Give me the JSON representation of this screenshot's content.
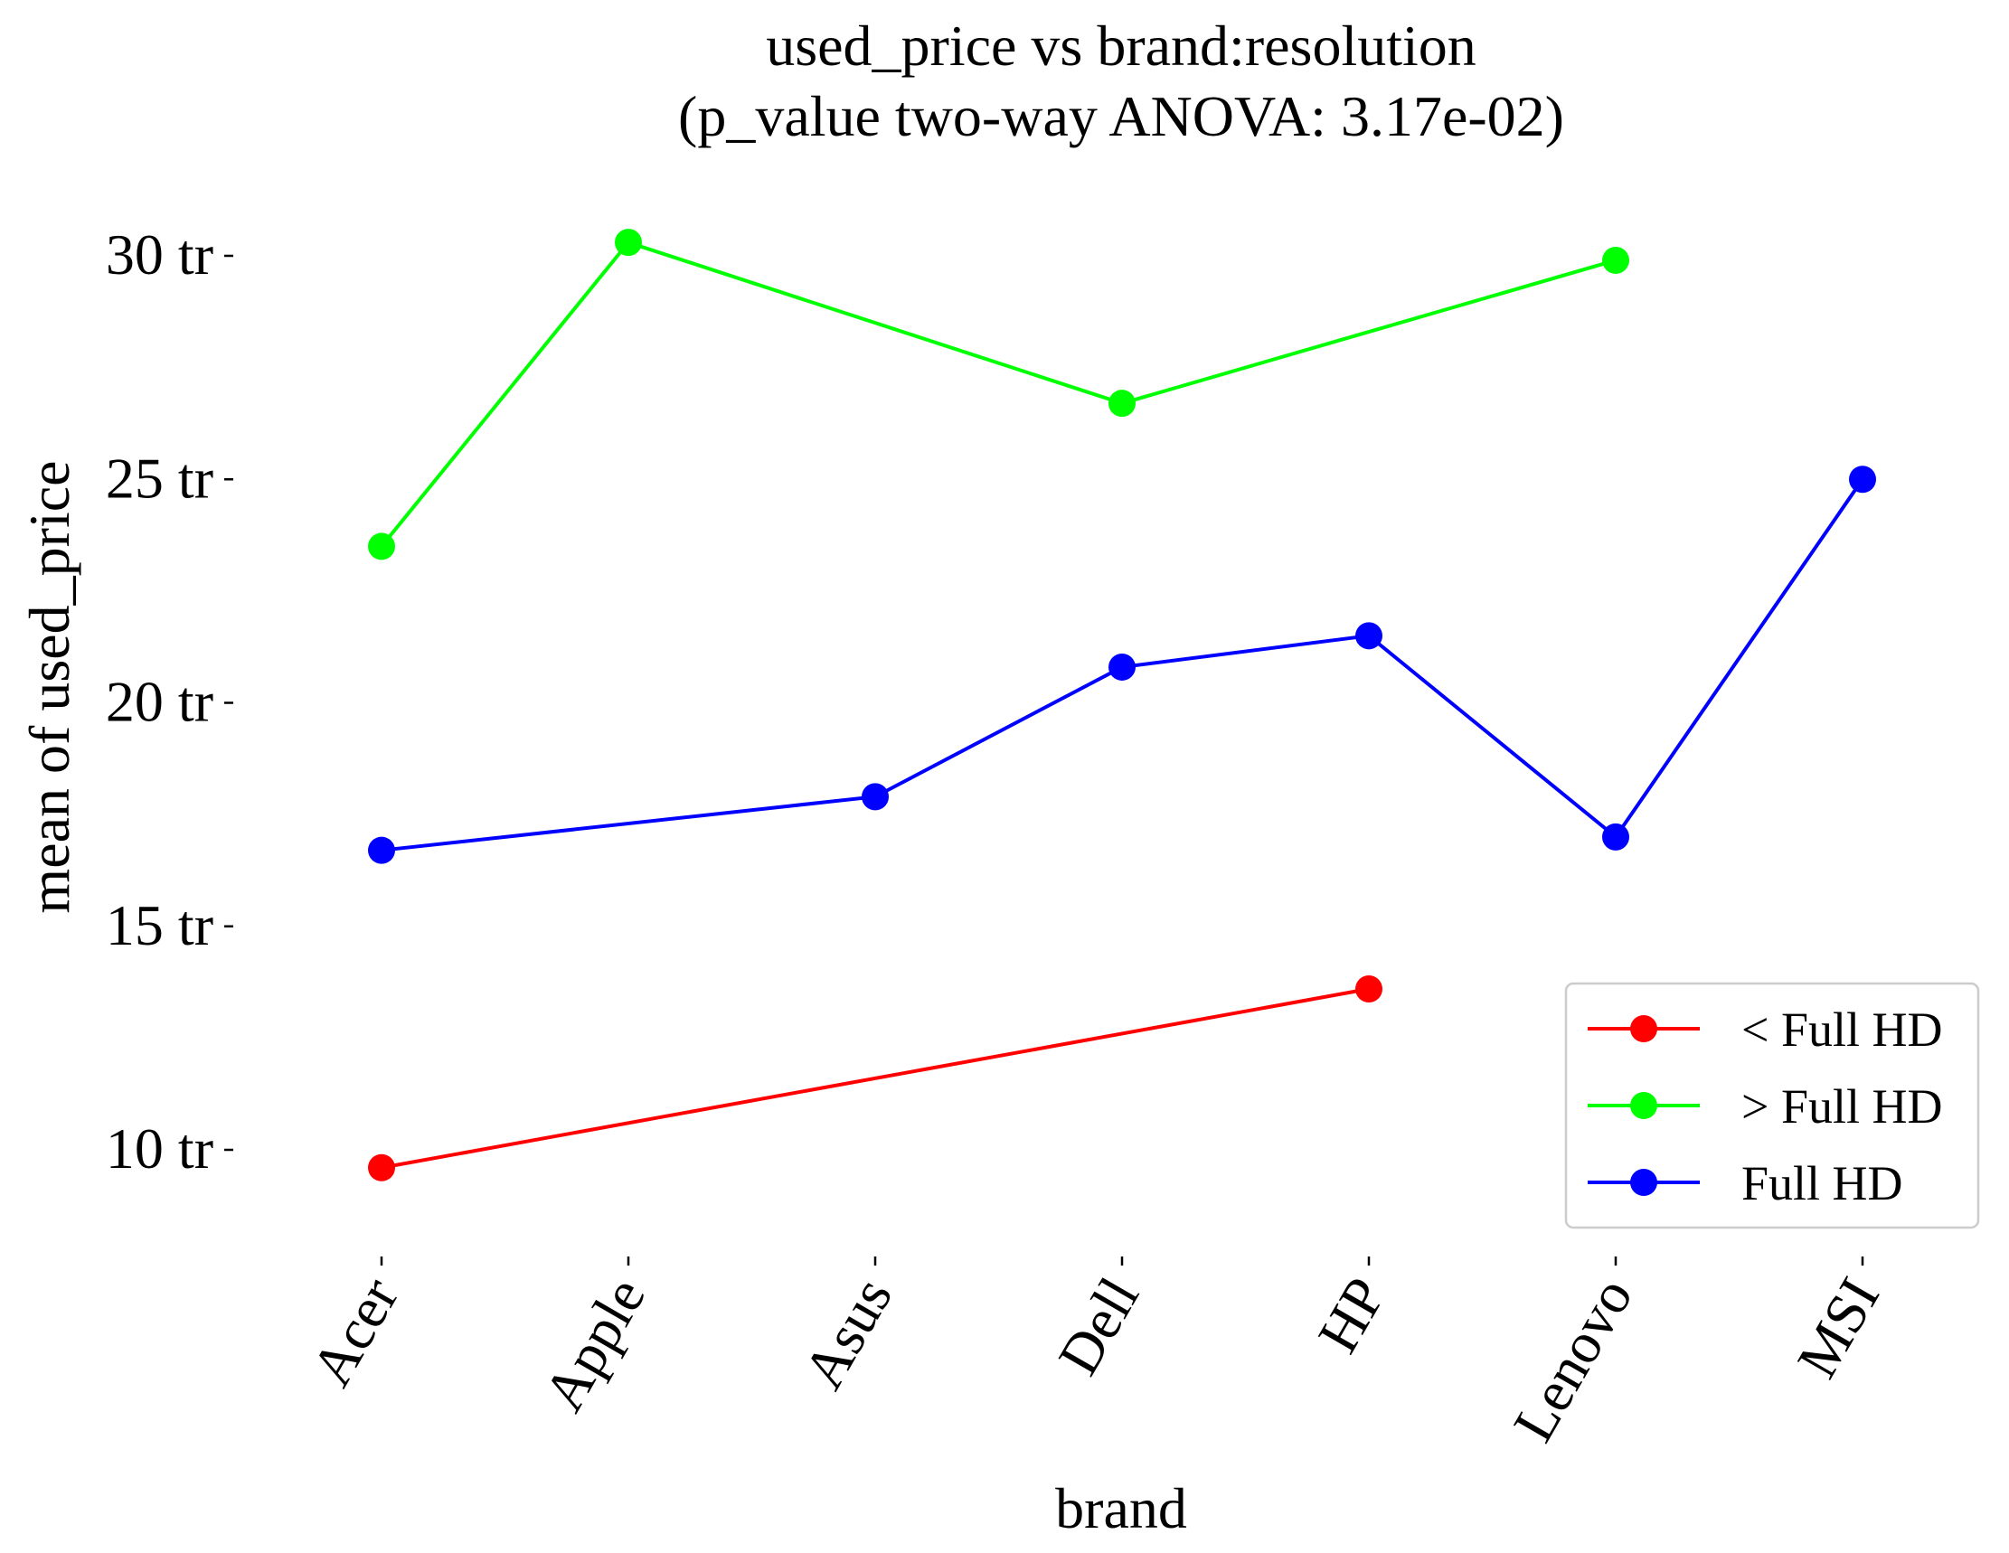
{
  "chart_data": {
    "type": "line",
    "title": "used_price vs brand:resolution",
    "subtitle": "(p_value two-way ANOVA: 3.17e-02)",
    "xlabel": "brand",
    "ylabel": "mean of used_price",
    "categories": [
      "Acer",
      "Apple",
      "Asus",
      "Dell",
      "HP",
      "Lenovo",
      "MSI"
    ],
    "yticks": [
      10,
      15,
      20,
      25,
      30
    ],
    "ytick_labels": [
      "10 tr",
      "15 tr",
      "20 tr",
      "25 tr",
      "30 tr"
    ],
    "ylim": [
      7.9,
      31.9
    ],
    "grid": false,
    "legend_position": "lower-right",
    "series": [
      {
        "name": "< Full HD",
        "color": "#ff0000",
        "values": [
          9.6,
          null,
          null,
          null,
          13.6,
          null,
          null
        ]
      },
      {
        "name": "> Full HD",
        "color": "#00ff00",
        "values": [
          23.5,
          30.3,
          null,
          26.7,
          null,
          29.9,
          null
        ]
      },
      {
        "name": "Full HD",
        "color": "#0000ff",
        "values": [
          16.7,
          null,
          17.9,
          20.8,
          21.5,
          17.0,
          25.0
        ]
      }
    ]
  }
}
